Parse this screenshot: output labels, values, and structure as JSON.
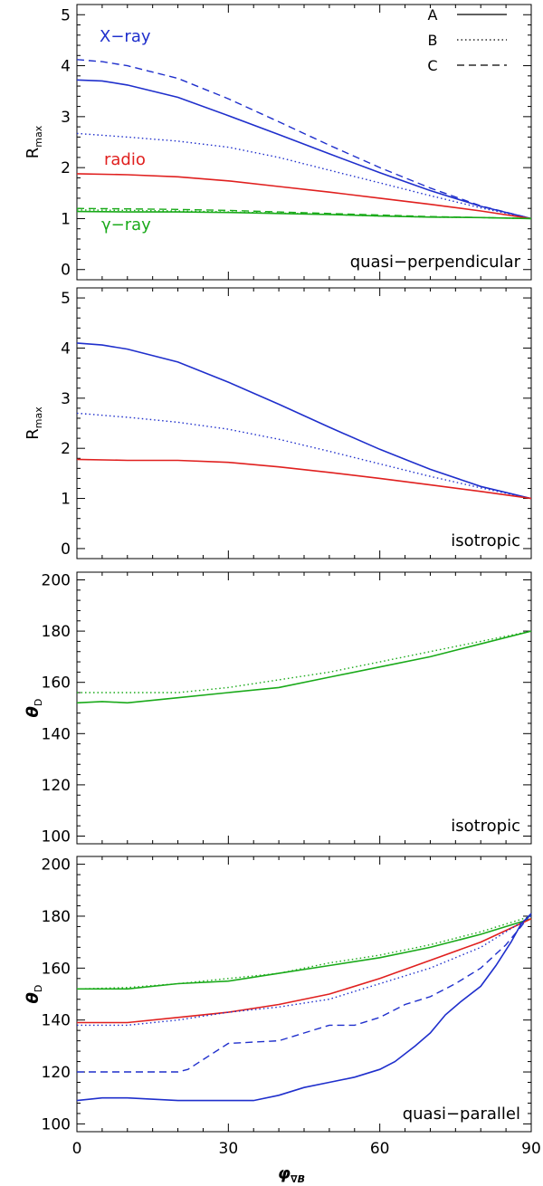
{
  "chart_data": [
    {
      "type": "line",
      "panel_label": "quasi−perpendicular",
      "ylabel_main": "R",
      "ylabel_sub": "max",
      "xlim": [
        0,
        90
      ],
      "ylim": [
        -0.2,
        5.2
      ],
      "yticks": [
        0,
        1,
        2,
        3,
        4,
        5
      ],
      "xticks": [
        0,
        30,
        60,
        90
      ],
      "legend": [
        {
          "name": "A",
          "style": "solid"
        },
        {
          "name": "B",
          "style": "dotted"
        },
        {
          "name": "C",
          "style": "dashed"
        }
      ],
      "annotations": [
        {
          "text": "X−ray",
          "color": "#1f2fcc"
        },
        {
          "text": "radio",
          "color": "#e0201f"
        },
        {
          "text": "γ−ray",
          "color": "#1aaa1a"
        }
      ],
      "series": [
        {
          "band": "X-ray",
          "style": "solid",
          "color": "#1f2fcc",
          "x": [
            0,
            5,
            10,
            20,
            30,
            40,
            50,
            60,
            70,
            80,
            90
          ],
          "y": [
            3.72,
            3.7,
            3.62,
            3.38,
            3.02,
            2.65,
            2.27,
            1.9,
            1.55,
            1.24,
            1.0
          ]
        },
        {
          "band": "X-ray",
          "style": "dotted",
          "color": "#1f2fcc",
          "x": [
            0,
            10,
            20,
            30,
            40,
            50,
            60,
            70,
            80,
            90
          ],
          "y": [
            2.67,
            2.6,
            2.52,
            2.4,
            2.2,
            1.95,
            1.7,
            1.45,
            1.21,
            1.0
          ]
        },
        {
          "band": "X-ray",
          "style": "dashed",
          "color": "#1f2fcc",
          "x": [
            0,
            5,
            10,
            20,
            30,
            40,
            50,
            60,
            70,
            80,
            90
          ],
          "y": [
            4.12,
            4.08,
            4.0,
            3.75,
            3.35,
            2.9,
            2.44,
            2.0,
            1.6,
            1.25,
            1.0
          ]
        },
        {
          "band": "radio",
          "style": "solid",
          "color": "#e0201f",
          "x": [
            0,
            10,
            20,
            30,
            40,
            50,
            60,
            70,
            80,
            90
          ],
          "y": [
            1.88,
            1.86,
            1.82,
            1.74,
            1.63,
            1.52,
            1.4,
            1.28,
            1.15,
            1.0
          ]
        },
        {
          "band": "gamma-ray",
          "style": "solid",
          "color": "#1aaa1a",
          "x": [
            0,
            10,
            20,
            30,
            40,
            50,
            60,
            70,
            80,
            90
          ],
          "y": [
            1.14,
            1.13,
            1.13,
            1.12,
            1.1,
            1.08,
            1.05,
            1.03,
            1.02,
            1.0
          ]
        },
        {
          "band": "gamma-ray",
          "style": "dotted",
          "color": "#1aaa1a",
          "x": [
            0,
            10,
            20,
            30,
            40,
            50,
            60,
            70,
            80,
            90
          ],
          "y": [
            1.17,
            1.16,
            1.15,
            1.13,
            1.11,
            1.08,
            1.05,
            1.03,
            1.02,
            1.0
          ]
        },
        {
          "band": "gamma-ray",
          "style": "dashed",
          "color": "#1aaa1a",
          "x": [
            0,
            10,
            20,
            30,
            40,
            50,
            60,
            70,
            80,
            90
          ],
          "y": [
            1.2,
            1.19,
            1.18,
            1.16,
            1.13,
            1.1,
            1.07,
            1.04,
            1.02,
            1.0
          ]
        }
      ]
    },
    {
      "type": "line",
      "panel_label": "isotropic",
      "ylabel_main": "R",
      "ylabel_sub": "max",
      "xlim": [
        0,
        90
      ],
      "ylim": [
        -0.2,
        5.2
      ],
      "yticks": [
        0,
        1,
        2,
        3,
        4,
        5
      ],
      "xticks": [
        0,
        30,
        60,
        90
      ],
      "series": [
        {
          "band": "X-ray",
          "style": "solid",
          "color": "#1f2fcc",
          "x": [
            0,
            5,
            10,
            20,
            30,
            40,
            50,
            60,
            70,
            80,
            90
          ],
          "y": [
            4.1,
            4.06,
            3.98,
            3.72,
            3.32,
            2.88,
            2.42,
            1.98,
            1.58,
            1.24,
            1.0
          ]
        },
        {
          "band": "X-ray",
          "style": "dotted",
          "color": "#1f2fcc",
          "x": [
            0,
            10,
            20,
            30,
            40,
            50,
            60,
            70,
            80,
            90
          ],
          "y": [
            2.7,
            2.62,
            2.52,
            2.38,
            2.18,
            1.94,
            1.69,
            1.44,
            1.21,
            1.0
          ]
        },
        {
          "band": "radio",
          "style": "solid",
          "color": "#e0201f",
          "x": [
            0,
            10,
            20,
            30,
            40,
            50,
            60,
            70,
            80,
            90
          ],
          "y": [
            1.78,
            1.76,
            1.76,
            1.72,
            1.63,
            1.52,
            1.4,
            1.27,
            1.14,
            1.0
          ]
        }
      ]
    },
    {
      "type": "line",
      "panel_label": "isotropic",
      "ylabel_main": "θ",
      "ylabel_sub": "D",
      "xlim": [
        0,
        90
      ],
      "ylim": [
        97,
        203
      ],
      "yticks": [
        100,
        120,
        140,
        160,
        180,
        200
      ],
      "xticks": [
        0,
        30,
        60,
        90
      ],
      "series": [
        {
          "band": "gamma-ray",
          "style": "solid",
          "color": "#1aaa1a",
          "x": [
            0,
            5,
            10,
            20,
            30,
            40,
            50,
            60,
            70,
            80,
            90
          ],
          "y": [
            152,
            152.5,
            152,
            154,
            156,
            158,
            162,
            166,
            170,
            175,
            180
          ]
        },
        {
          "band": "gamma-ray",
          "style": "dotted",
          "color": "#1aaa1a",
          "x": [
            0,
            10,
            20,
            30,
            40,
            50,
            60,
            70,
            80,
            90
          ],
          "y": [
            156,
            156,
            156,
            158,
            161,
            164,
            168,
            172,
            176,
            180
          ]
        }
      ]
    },
    {
      "type": "line",
      "panel_label": "quasi−parallel",
      "ylabel_main": "θ",
      "ylabel_sub": "D",
      "xlabel_main": "φ",
      "xlabel_sub": "∇B",
      "xlim": [
        0,
        90
      ],
      "ylim": [
        97,
        203
      ],
      "yticks": [
        100,
        120,
        140,
        160,
        180,
        200
      ],
      "xticks": [
        0,
        30,
        60,
        90
      ],
      "series": [
        {
          "band": "gamma-ray",
          "style": "solid",
          "color": "#1aaa1a",
          "x": [
            0,
            10,
            20,
            30,
            40,
            50,
            60,
            70,
            80,
            90
          ],
          "y": [
            152,
            152,
            154,
            155,
            158,
            161,
            164,
            168,
            173,
            179
          ]
        },
        {
          "band": "gamma-ray",
          "style": "dotted",
          "color": "#1aaa1a",
          "x": [
            0,
            10,
            20,
            30,
            40,
            50,
            60,
            70,
            80,
            90
          ],
          "y": [
            152,
            152.5,
            154,
            156,
            158,
            162,
            165,
            169,
            174,
            180
          ]
        },
        {
          "band": "radio",
          "style": "solid",
          "color": "#e0201f",
          "x": [
            0,
            10,
            20,
            30,
            40,
            50,
            60,
            70,
            80,
            90
          ],
          "y": [
            139,
            139,
            141,
            143,
            146,
            150,
            156,
            163,
            170,
            179
          ]
        },
        {
          "band": "X-ray",
          "style": "dotted",
          "color": "#1f2fcc",
          "x": [
            0,
            10,
            20,
            30,
            40,
            50,
            60,
            70,
            80,
            90
          ],
          "y": [
            138,
            138,
            140,
            143,
            145,
            148,
            154,
            160,
            168,
            180
          ]
        },
        {
          "band": "X-ray",
          "style": "dashed",
          "color": "#1f2fcc",
          "x": [
            0,
            10,
            20,
            22,
            26,
            30,
            40,
            45,
            50,
            55,
            60,
            65,
            70,
            75,
            80,
            85,
            88,
            90
          ],
          "y": [
            120,
            120,
            120,
            121,
            126,
            131,
            132,
            135,
            138,
            138,
            141,
            146,
            149,
            154,
            160,
            169,
            176,
            181
          ]
        },
        {
          "band": "X-ray",
          "style": "solid",
          "color": "#1f2fcc",
          "x": [
            0,
            5,
            10,
            20,
            30,
            35,
            40,
            45,
            50,
            55,
            60,
            63,
            67,
            70,
            73,
            76,
            80,
            83,
            86,
            88,
            90
          ],
          "y": [
            109,
            110,
            110,
            109,
            109,
            109,
            111,
            114,
            116,
            118,
            121,
            124,
            130,
            135,
            142,
            147,
            153,
            161,
            170,
            177,
            181
          ]
        }
      ]
    }
  ]
}
